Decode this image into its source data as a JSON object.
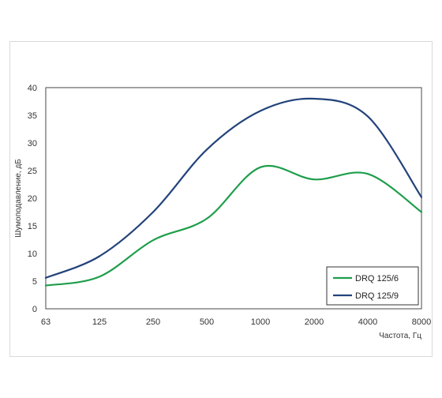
{
  "chart_data": {
    "type": "line",
    "x": [
      63,
      125,
      250,
      500,
      1000,
      2000,
      4000,
      8000
    ],
    "xscale": "log2",
    "xlabel": "Частота, Гц",
    "ylabel": "Шумоподавление, дБ",
    "ylim": [
      0,
      40
    ],
    "yticks": [
      0,
      5,
      10,
      15,
      20,
      25,
      30,
      35,
      40
    ],
    "grid": true,
    "minor_grid": true,
    "legend_position": "bottom-right",
    "series": [
      {
        "name": "DRQ 125/6",
        "color": "#1e9e4a",
        "values": [
          4.2,
          5.8,
          12.4,
          16.3,
          25.6,
          23.4,
          24.4,
          17.5
        ]
      },
      {
        "name": "DRQ 125/9",
        "color": "#22437a",
        "values": [
          5.6,
          9.5,
          17.5,
          28.8,
          35.8,
          38.0,
          34.8,
          20.2
        ]
      }
    ]
  }
}
